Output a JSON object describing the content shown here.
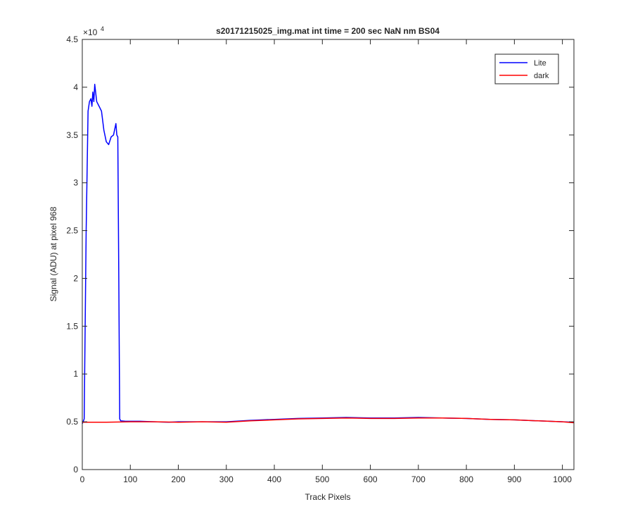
{
  "chart_data": {
    "type": "line",
    "title": "s20171215025_img.mat int time = 200 sec  NaN nm BS04",
    "xlabel": "Track Pixels",
    "ylabel": "Signal (ADU) at pixel 968",
    "y_exponent_label": "×10",
    "y_exponent_power": "4",
    "xlim": [
      0,
      1024
    ],
    "ylim": [
      0,
      45000
    ],
    "xticks": [
      0,
      100,
      200,
      300,
      400,
      500,
      600,
      700,
      800,
      900,
      1000
    ],
    "xtick_labels": [
      "0",
      "100",
      "200",
      "300",
      "400",
      "500",
      "600",
      "700",
      "800",
      "900",
      "1000"
    ],
    "yticks": [
      0,
      5000,
      10000,
      15000,
      20000,
      25000,
      30000,
      35000,
      40000,
      45000
    ],
    "ytick_labels": [
      "0",
      "0.5",
      "1",
      "1.5",
      "2",
      "2.5",
      "3",
      "3.5",
      "4",
      "4.5"
    ],
    "grid": false,
    "legend_position": "top-right",
    "series": [
      {
        "name": "Lite",
        "color": "#0000ff",
        "x": [
          0,
          4,
          8,
          12,
          15,
          18,
          20,
          22,
          24,
          26,
          30,
          35,
          40,
          45,
          50,
          55,
          60,
          65,
          70,
          72,
          74,
          76,
          78,
          80,
          90,
          100,
          120,
          150,
          180,
          200,
          250,
          300,
          350,
          400,
          450,
          500,
          550,
          600,
          650,
          700,
          750,
          800,
          850,
          900,
          950,
          1000,
          1024
        ],
        "y": [
          4800,
          5300,
          25000,
          37500,
          38500,
          38800,
          38000,
          39500,
          38500,
          40300,
          38500,
          38000,
          37500,
          35500,
          34300,
          34000,
          34800,
          35000,
          36200,
          35000,
          34800,
          20000,
          5300,
          5100,
          5050,
          5050,
          5050,
          5000,
          4950,
          5000,
          5000,
          5000,
          5150,
          5250,
          5350,
          5400,
          5450,
          5400,
          5400,
          5450,
          5400,
          5350,
          5250,
          5200,
          5100,
          5000,
          4950
        ]
      },
      {
        "name": "dark",
        "color": "#ff0000",
        "x": [
          0,
          50,
          100,
          150,
          200,
          250,
          300,
          350,
          400,
          450,
          500,
          550,
          600,
          650,
          700,
          750,
          800,
          850,
          900,
          950,
          1000,
          1024
        ],
        "y": [
          4950,
          4950,
          5000,
          5000,
          4950,
          5000,
          4950,
          5100,
          5200,
          5300,
          5350,
          5400,
          5350,
          5350,
          5400,
          5400,
          5350,
          5250,
          5200,
          5100,
          5000,
          4900
        ]
      }
    ]
  }
}
